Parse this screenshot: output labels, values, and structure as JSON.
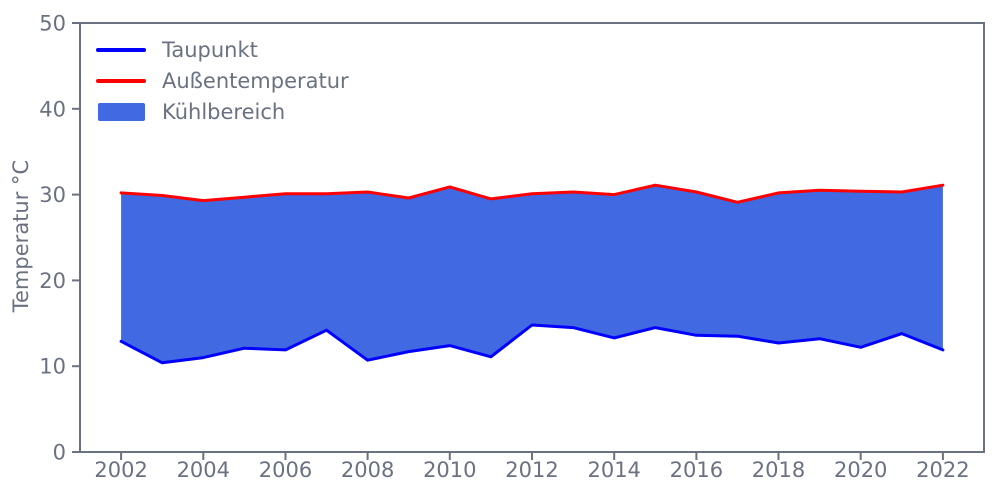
{
  "chart_data": {
    "type": "area",
    "title": "",
    "xlabel": "",
    "ylabel": "Temperatur °C",
    "x": [
      2002,
      2003,
      2004,
      2005,
      2006,
      2007,
      2008,
      2009,
      2010,
      2011,
      2012,
      2013,
      2014,
      2015,
      2016,
      2017,
      2018,
      2019,
      2020,
      2021,
      2022
    ],
    "series": [
      {
        "name": "Taupunkt",
        "role": "lower-line",
        "color": "#0000ff",
        "values": [
          12.9,
          10.4,
          11.0,
          12.1,
          11.9,
          14.2,
          10.7,
          11.7,
          12.4,
          11.1,
          14.8,
          14.5,
          13.3,
          14.5,
          13.6,
          13.5,
          12.7,
          13.2,
          12.2,
          13.8,
          11.9
        ]
      },
      {
        "name": "Außentemperatur",
        "role": "upper-line",
        "color": "#ff0000",
        "values": [
          30.2,
          29.9,
          29.3,
          29.7,
          30.1,
          30.1,
          30.3,
          29.6,
          30.9,
          29.5,
          30.1,
          30.3,
          30.0,
          31.1,
          30.3,
          29.1,
          30.2,
          30.5,
          30.4,
          30.3,
          31.1
        ]
      }
    ],
    "fill": {
      "label": "Kühlbereich",
      "color": "#4169e1",
      "between": [
        "Taupunkt",
        "Außentemperatur"
      ]
    },
    "legend": [
      {
        "label": "Taupunkt",
        "swatch": "line",
        "color": "#0000ff"
      },
      {
        "label": "Außentemperatur",
        "swatch": "line",
        "color": "#ff0000"
      },
      {
        "label": "Kühlbereich",
        "swatch": "patch",
        "color": "#4169e1"
      }
    ],
    "xlim": [
      2001,
      2023
    ],
    "ylim": [
      0,
      50
    ],
    "xticks": [
      2002,
      2004,
      2006,
      2008,
      2010,
      2012,
      2014,
      2016,
      2018,
      2020,
      2022
    ],
    "yticks": [
      0,
      10,
      20,
      30,
      40,
      50
    ],
    "grid": false,
    "legend_position": "upper left",
    "axis_color": "#6a7180",
    "background_color": "#ffffff",
    "line_width": 3
  }
}
